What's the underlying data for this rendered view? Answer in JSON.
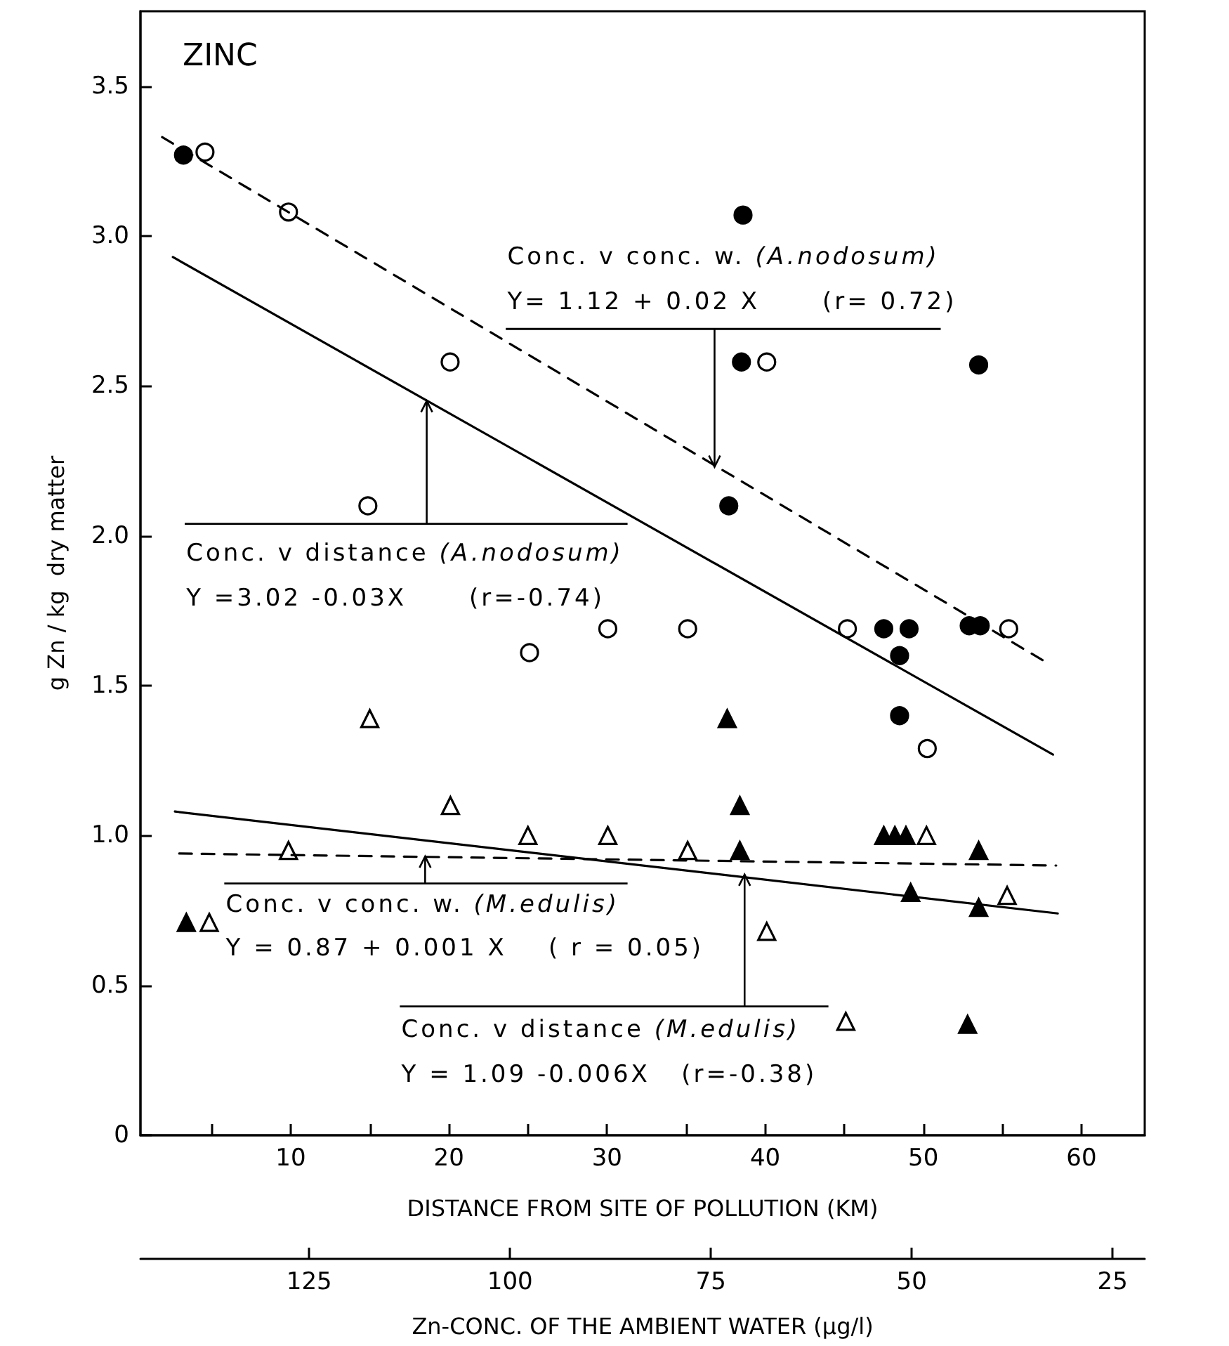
{
  "chart_data": {
    "type": "scatter",
    "title": "ZINC",
    "xlabel": "DISTANCE FROM SITE OF POLLUTION (KM)",
    "ylabel": "g Zn / kg  dry matter",
    "x2label": "Zn-CONC. OF THE AMBIENT WATER (μg/l)",
    "xlim": [
      0.5,
      64
    ],
    "xticks": [
      {
        "value": 5,
        "label": null
      },
      10,
      {
        "value": 15,
        "label": null
      },
      20,
      {
        "value": 25,
        "label": null
      },
      30,
      {
        "value": 35,
        "label": null
      },
      40,
      {
        "value": 45,
        "label": null
      },
      50,
      {
        "value": 55,
        "label": null
      },
      60
    ],
    "ylim": [
      0,
      3.75
    ],
    "yticks": [
      0,
      0.5,
      {
        "value": 1,
        "label": "1.0"
      },
      1.5,
      {
        "value": 2,
        "label": "2.0"
      },
      2.5,
      {
        "value": 3,
        "label": "3.0"
      },
      3.5
    ],
    "x2lim": [
      146,
      21
    ],
    "x2ticks": [
      125,
      100,
      75,
      50,
      25
    ],
    "annotations": [
      "Conc. v conc. w. (A.nodosum)",
      {
        "text": "Y= 1.12 + 0.02 X      (r= 0.72)",
        "x": 36.8,
        "y": 2.23
      },
      {
        "text": "Conc. v distance (A.nodosum)",
        "x": 18.6,
        "y": 2.45
      },
      "Y =3.02 -0.03X      (r=-0.74)",
      {
        "text": "Conc. v conc. w. (M.edulis)",
        "x": 18.5,
        "y": 0.93
      },
      "Y = 0.87 + 0.001 X    ( r = 0.05)",
      {
        "text": "Conc. v distance (M.edulis)",
        "x": 38.7,
        "y": 0.87
      },
      "Y = 1.09 -0.006X   (r=-0.38)"
    ],
    "series": [
      {
        "type": "scatter",
        "marker": "circle",
        "color": "#ffffff",
        "x": [
          4.58,
          9.86,
          14.88,
          20.08,
          25.1,
          30.05,
          35.1,
          40.1,
          45.2,
          50.25,
          55.4
        ],
        "values": [
          3.28,
          3.08,
          2.1,
          2.58,
          1.61,
          1.69,
          1.69,
          2.58,
          1.69,
          1.29,
          1.69
        ]
      },
      {
        "type": "scatter",
        "marker": "circle",
        "color": "#000000",
        "x": [
          3.22,
          37.7,
          38.5,
          38.6,
          47.5,
          48.5,
          48.5,
          49.1,
          52.9,
          53.5,
          53.6
        ],
        "values": [
          3.27,
          2.1,
          2.58,
          3.07,
          1.69,
          1.6,
          1.4,
          1.69,
          1.7,
          2.57,
          1.7
        ]
      },
      {
        "type": "scatter",
        "marker": "triangle",
        "color": "#ffffff",
        "x": [
          4.85,
          9.86,
          15.0,
          20.1,
          25.0,
          30.05,
          35.1,
          40.1,
          45.1,
          50.2,
          55.3
        ],
        "values": [
          0.71,
          0.95,
          1.39,
          1.1,
          1.0,
          1.0,
          0.95,
          0.68,
          0.38,
          1.0,
          0.8
        ]
      },
      {
        "type": "scatter",
        "marker": "triangle",
        "color": "#000000",
        "x": [
          3.4,
          37.6,
          38.4,
          38.4,
          47.5,
          48.2,
          48.9,
          49.2,
          52.8,
          53.5,
          53.5
        ],
        "values": [
          0.71,
          1.39,
          1.1,
          0.95,
          1.0,
          1.0,
          1.0,
          0.81,
          0.37,
          0.95,
          0.76
        ]
      },
      {
        "type": "line",
        "line_style": "solid",
        "marker": "none",
        "color": "#000000",
        "x": [
          2.55,
          58.2
        ],
        "values": [
          2.93,
          1.27
        ]
      },
      {
        "type": "line",
        "line_style": "dashed",
        "marker": "none",
        "color": "#000000",
        "x": [
          1.87,
          57.7
        ],
        "values": [
          3.33,
          1.58
        ]
      },
      {
        "type": "line",
        "line_style": "solid",
        "marker": "none",
        "color": "#000000",
        "x": [
          2.68,
          58.5
        ],
        "values": [
          1.08,
          0.74
        ]
      },
      {
        "type": "line",
        "line_style": "dashed",
        "marker": "none",
        "color": "#000000",
        "x": [
          2.95,
          58.4
        ],
        "values": [
          0.94,
          0.9
        ]
      }
    ]
  }
}
